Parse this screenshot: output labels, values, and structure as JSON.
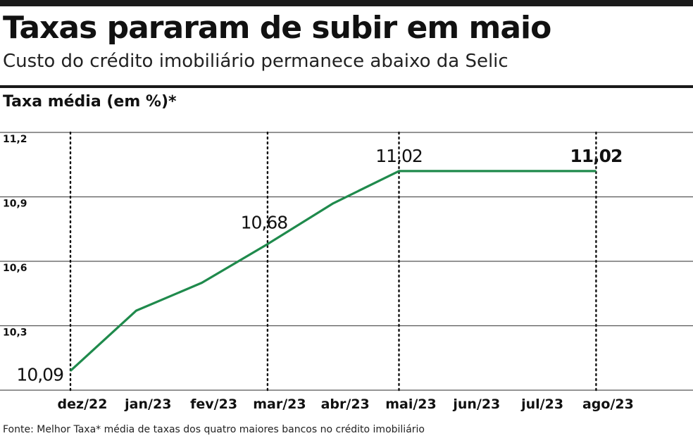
{
  "header": {
    "title": "Taxas pararam de subir em maio",
    "subtitle": "Custo do crédito imobiliário permanece abaixo da Selic"
  },
  "footer": {
    "source": "Fonte: Melhor Taxa* média de taxas dos quatro maiores bancos no crédito imobiliário"
  },
  "colors": {
    "line": "#1f8a4c",
    "grid": "#555555",
    "text": "#111111"
  },
  "chart_data": {
    "type": "line",
    "ylabel": "Taxa média (em %)*",
    "categories": [
      "dez/22",
      "jan/23",
      "fev/23",
      "mar/23",
      "abr/23",
      "mai/23",
      "jun/23",
      "jul/23",
      "ago/23"
    ],
    "ylim": [
      10.0,
      11.2
    ],
    "yticks": [
      {
        "value": 11.2,
        "label": "11,2"
      },
      {
        "value": 10.9,
        "label": "10,9"
      },
      {
        "value": 10.6,
        "label": "10,6"
      },
      {
        "value": 10.3,
        "label": "10,3"
      }
    ],
    "grid": true,
    "highlighted_months": [
      "dez/22",
      "mar/23",
      "mai/23",
      "ago/23"
    ],
    "series": [
      {
        "values": [
          10.09,
          10.37,
          10.5,
          10.68,
          10.87,
          11.02,
          11.02,
          11.02,
          11.02
        ]
      }
    ],
    "annotations": [
      {
        "category": "dez/22",
        "value": 10.09,
        "label": "10,09",
        "bold": false
      },
      {
        "category": "mar/23",
        "value": 10.68,
        "label": "10,68",
        "bold": false
      },
      {
        "category": "mai/23",
        "value": 11.02,
        "label": "11,02",
        "bold": false
      },
      {
        "category": "ago/23",
        "value": 11.02,
        "label": "11,02",
        "bold": true
      }
    ]
  }
}
